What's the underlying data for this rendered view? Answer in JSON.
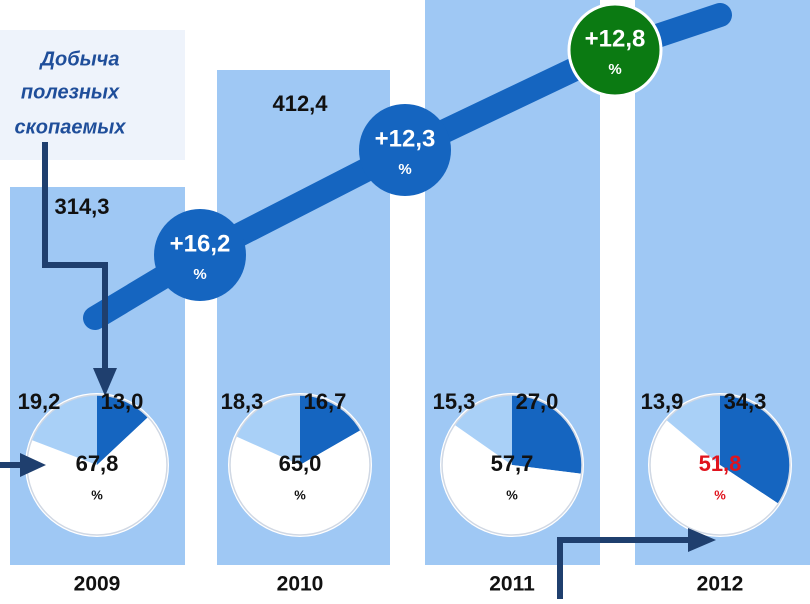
{
  "callout": [
    "Добыча",
    "полезных",
    "скопаемых"
  ],
  "years": [
    {
      "year": "2009",
      "value_label": "314,3",
      "pie": {
        "values": [
          13.0,
          67.8,
          19.2
        ],
        "value_labels": [
          "13,0",
          "67,8",
          "19,2"
        ],
        "unit": "%"
      }
    },
    {
      "year": "2010",
      "value_label": "412,4",
      "pie": {
        "values": [
          16.7,
          65.0,
          18.3
        ],
        "value_labels": [
          "16,7",
          "65,0",
          "18,3"
        ],
        "unit": "%"
      }
    },
    {
      "year": "2011",
      "pie": {
        "values": [
          27.0,
          57.7,
          15.3
        ],
        "value_labels": [
          "27,0",
          "57,7",
          "15,3"
        ],
        "unit": "%"
      }
    },
    {
      "year": "2012",
      "pie": {
        "values": [
          34.3,
          51.8,
          13.9
        ],
        "value_labels": [
          "34,3",
          "51,8",
          "13,9"
        ],
        "unit": "%"
      }
    }
  ],
  "growth": [
    {
      "label": "+16,2",
      "unit": "%"
    },
    {
      "label": "+12,3",
      "unit": "%"
    },
    {
      "label": "+12,8",
      "unit": "%"
    }
  ]
}
